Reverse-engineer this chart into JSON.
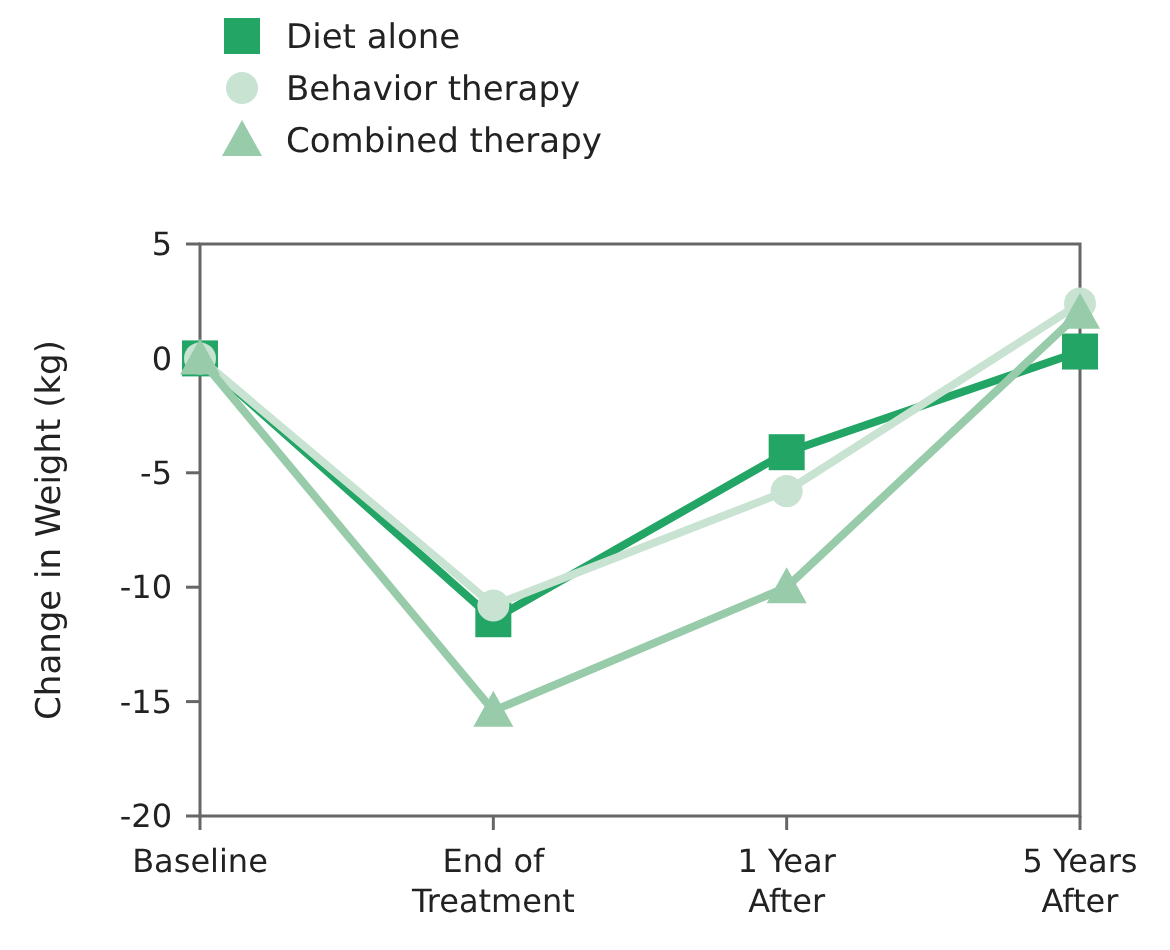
{
  "chart_data": {
    "type": "line",
    "ylabel": "Change in Weight (kg)",
    "categories": [
      "Baseline",
      "End of Treatment",
      "1 Year After",
      "5 Years After"
    ],
    "ylim": [
      -20,
      5
    ],
    "yticks": [
      -20,
      -15,
      -10,
      -5,
      0,
      5
    ],
    "legend": "top left",
    "grid": false,
    "series": [
      {
        "name": "Diet alone",
        "color": "#23a566",
        "marker": "square",
        "values": [
          0,
          -11.4,
          -4.1,
          0.3
        ]
      },
      {
        "name": "Behavior therapy",
        "color": "#c8e3d1",
        "marker": "circle",
        "values": [
          0,
          -10.8,
          -5.8,
          2.4
        ]
      },
      {
        "name": "Combined therapy",
        "color": "#98cba9",
        "marker": "triangle",
        "values": [
          0,
          -15.4,
          -10,
          2
        ]
      }
    ]
  }
}
